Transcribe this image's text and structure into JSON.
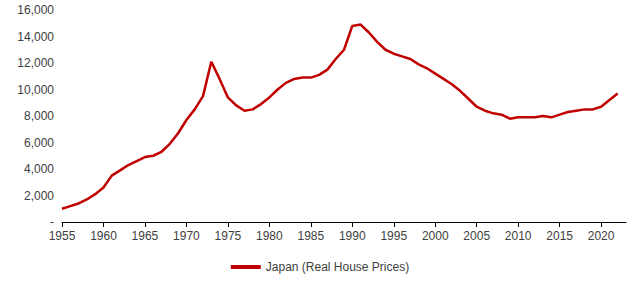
{
  "chart_data": {
    "type": "line",
    "x": [
      1955,
      1956,
      1957,
      1958,
      1959,
      1960,
      1961,
      1962,
      1963,
      1964,
      1965,
      1966,
      1967,
      1968,
      1969,
      1970,
      1971,
      1972,
      1973,
      1974,
      1975,
      1976,
      1977,
      1978,
      1979,
      1980,
      1981,
      1982,
      1983,
      1984,
      1985,
      1986,
      1987,
      1988,
      1989,
      1990,
      1991,
      1992,
      1993,
      1994,
      1995,
      1996,
      1997,
      1998,
      1999,
      2000,
      2001,
      2002,
      2003,
      2004,
      2005,
      2006,
      2007,
      2008,
      2009,
      2010,
      2011,
      2012,
      2013,
      2014,
      2015,
      2016,
      2017,
      2018,
      2019,
      2020,
      2021,
      2022
    ],
    "series": [
      {
        "name": "Japan (Real House Prices)",
        "color": "#c00000",
        "values": [
          1000,
          1200,
          1400,
          1700,
          2100,
          2600,
          3500,
          3900,
          4300,
          4600,
          4900,
          5000,
          5300,
          5900,
          6700,
          7700,
          8500,
          9500,
          12100,
          10800,
          9400,
          8800,
          8400,
          8500,
          8900,
          9400,
          10000,
          10500,
          10800,
          10900,
          10900,
          11100,
          11500,
          12300,
          13000,
          14800,
          14900,
          14300,
          13600,
          13000,
          12700,
          12500,
          12300,
          11900,
          11600,
          11200,
          10800,
          10400,
          9900,
          9300,
          8700,
          8400,
          8200,
          8100,
          7800,
          7900,
          7900,
          7900,
          8000,
          7900,
          8100,
          8300,
          8400,
          8500,
          8500,
          8700,
          9200,
          9700
        ]
      }
    ],
    "xlim": [
      1955,
      2023
    ],
    "xticks": [
      1955,
      1960,
      1965,
      1970,
      1975,
      1980,
      1985,
      1990,
      1995,
      2000,
      2005,
      2010,
      2015,
      2020
    ],
    "ylim": [
      0,
      16000
    ],
    "yticks": [
      {
        "value": 0,
        "label": "-"
      },
      {
        "value": 2000,
        "label": "2,000"
      },
      {
        "value": 4000,
        "label": "4,000"
      },
      {
        "value": 6000,
        "label": "6,000"
      },
      {
        "value": 8000,
        "label": "8,000"
      },
      {
        "value": 10000,
        "label": "10,000"
      },
      {
        "value": 12000,
        "label": "12,000"
      },
      {
        "value": 14000,
        "label": "14,000"
      },
      {
        "value": 16000,
        "label": "16,000"
      }
    ],
    "grid": false,
    "legend": "bottom"
  }
}
